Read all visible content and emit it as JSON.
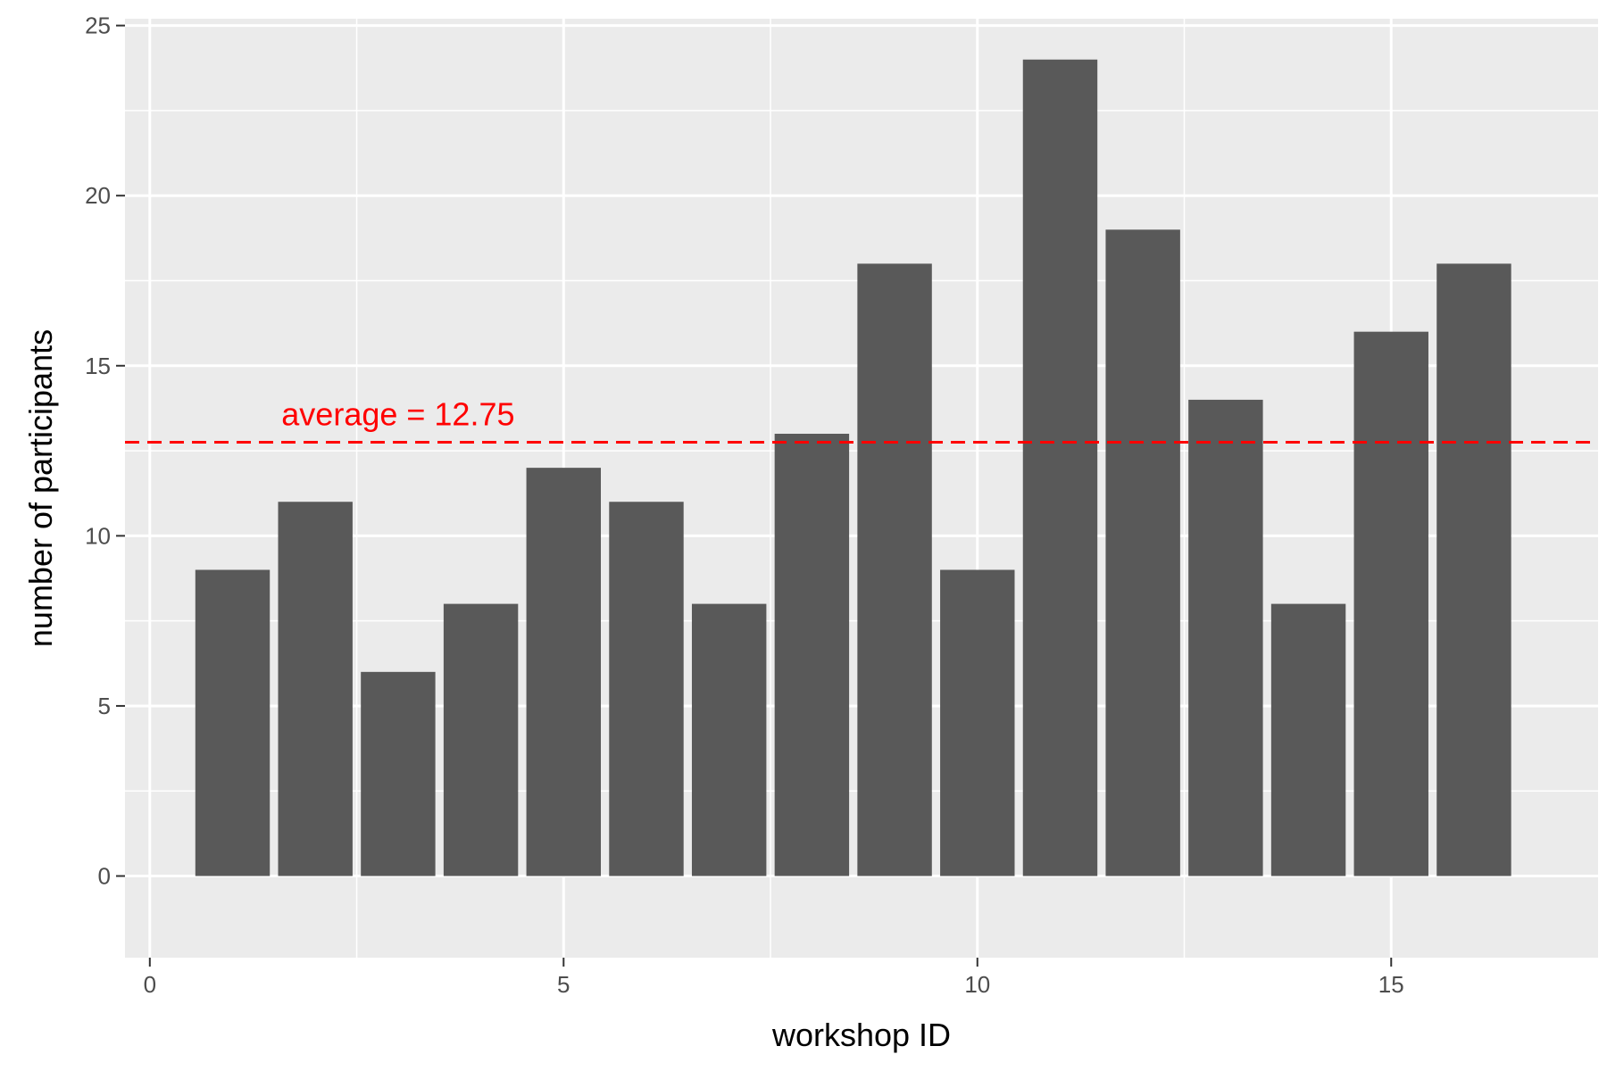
{
  "chart_data": {
    "type": "bar",
    "x": [
      1,
      2,
      3,
      4,
      5,
      6,
      7,
      8,
      9,
      10,
      11,
      12,
      13,
      14,
      15,
      16
    ],
    "values": [
      9,
      11,
      6,
      8,
      12,
      11,
      8,
      13,
      18,
      9,
      24,
      19,
      14,
      8,
      16,
      18
    ],
    "xlabel": "workshop ID",
    "ylabel": "number of participants",
    "xlim": [
      -0.3,
      17.5
    ],
    "ylim": [
      -2.4,
      25.2
    ],
    "x_ticks": [
      0,
      5,
      10,
      15
    ],
    "y_ticks": [
      0,
      5,
      10,
      15,
      20,
      25
    ],
    "bar_color": "#595959",
    "panel_color": "#ebebeb",
    "grid": true,
    "average_line": {
      "value": 12.75,
      "color": "#ff0000",
      "label": "average = 12.75"
    }
  }
}
